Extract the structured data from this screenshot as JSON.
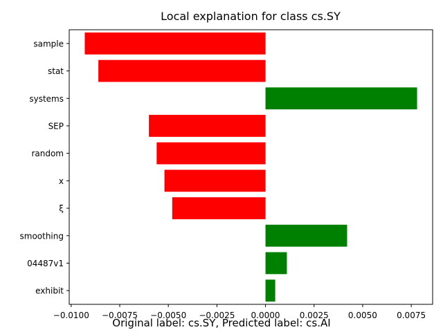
{
  "chart_data": {
    "type": "bar",
    "orientation": "horizontal",
    "title": "Local explanation for class cs.SY",
    "xlabel": "",
    "ylabel": "",
    "categories": [
      "sample",
      "stat",
      "systems",
      "SEP",
      "random",
      "x",
      "ξ",
      "smoothing",
      "04487v1",
      "exhibit"
    ],
    "values": [
      -0.0093,
      -0.0086,
      0.0078,
      -0.006,
      -0.0056,
      -0.0052,
      -0.0048,
      0.0042,
      0.0011,
      0.0005
    ],
    "xlim": [
      -0.0101,
      0.0086
    ],
    "xticks": [
      -0.01,
      -0.0075,
      -0.005,
      -0.0025,
      0.0,
      0.0025,
      0.005,
      0.0075
    ],
    "xtick_labels": [
      "−0.0100",
      "−0.0075",
      "−0.0050",
      "−0.0025",
      "0.0000",
      "0.0025",
      "0.0050",
      "0.0075"
    ],
    "grid": false,
    "colors": {
      "positive": "#008000",
      "negative": "#ff0000"
    }
  },
  "caption": "Original label: cs.SY, Predicted label: cs.AI"
}
